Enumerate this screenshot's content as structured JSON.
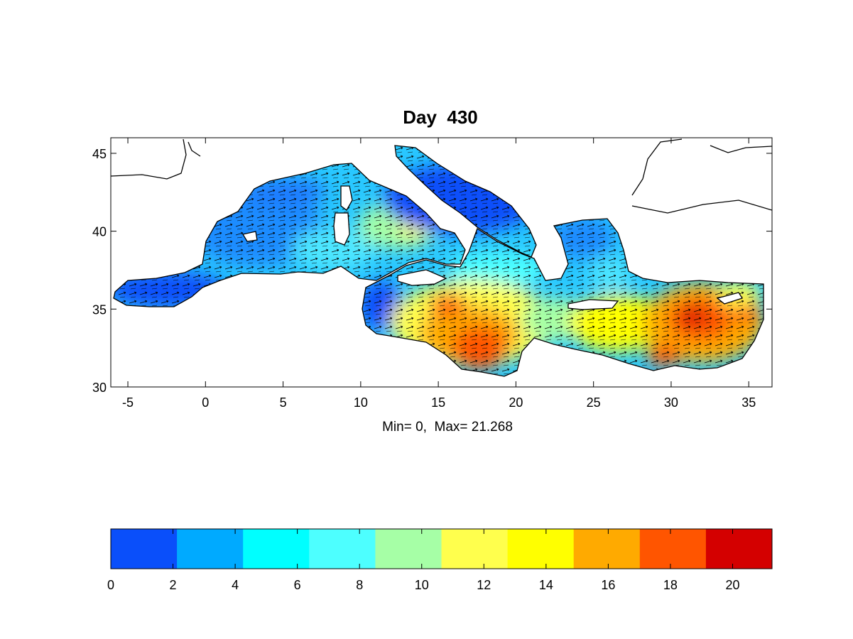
{
  "figure": {
    "title": "Day  430",
    "subtitle": "Min= 0,  Max= 21.268"
  },
  "map": {
    "x_ticks": [
      "-5",
      "0",
      "5",
      "10",
      "15",
      "20",
      "25",
      "30",
      "35"
    ],
    "y_ticks": [
      "45",
      "40",
      "35",
      "30"
    ],
    "x_range": [
      -6.1,
      36.5
    ],
    "y_range": [
      30,
      46
    ],
    "region": "Mediterranean Sea",
    "field_min": 0,
    "field_max": 21.268,
    "overlay": "current vectors"
  },
  "colorbar": {
    "ticks": [
      "0",
      "2",
      "4",
      "6",
      "8",
      "10",
      "12",
      "14",
      "16",
      "18",
      "20"
    ],
    "colors": [
      "#0a4ffa",
      "#00aaff",
      "#00ffff",
      "#4dffff",
      "#a6ffa6",
      "#ffff4d",
      "#ffff00",
      "#ffaa00",
      "#ff5500",
      "#d40000"
    ]
  }
}
